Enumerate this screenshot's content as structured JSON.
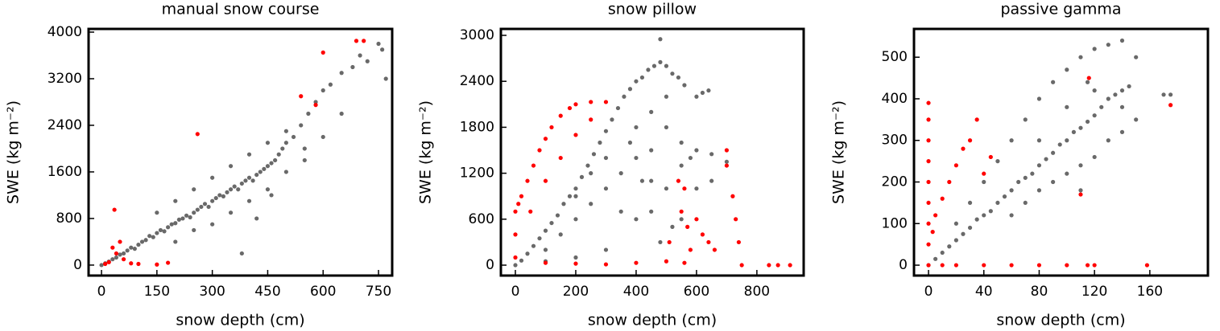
{
  "chart_data": [
    {
      "type": "scatter",
      "title": "manual snow course",
      "xlabel": "snow depth (cm)",
      "ylabel": "SWE (kg m⁻²)",
      "xlim": [
        -35,
        787
      ],
      "ylim": [
        -180,
        4055
      ],
      "xticks": [
        0,
        150,
        300,
        450,
        600,
        750
      ],
      "yticks": [
        0,
        800,
        1600,
        2400,
        3200,
        4000
      ],
      "series": [
        {
          "color": "#696969",
          "x": [
            0,
            10,
            20,
            30,
            40,
            50,
            60,
            70,
            80,
            90,
            100,
            110,
            120,
            130,
            140,
            150,
            160,
            170,
            180,
            190,
            200,
            210,
            220,
            230,
            240,
            250,
            260,
            270,
            280,
            290,
            300,
            310,
            320,
            330,
            340,
            350,
            360,
            370,
            380,
            390,
            400,
            410,
            420,
            430,
            440,
            450,
            460,
            470,
            480,
            490,
            500,
            520,
            540,
            560,
            580,
            600,
            620,
            650,
            680,
            700,
            720,
            750,
            770,
            760,
            200,
            250,
            300,
            350,
            400,
            450,
            150,
            200,
            250,
            300,
            350,
            400,
            450,
            500,
            550,
            500,
            380,
            420,
            460,
            550,
            600,
            650
          ],
          "values": [
            0,
            30,
            60,
            100,
            130,
            180,
            200,
            250,
            300,
            280,
            350,
            400,
            430,
            500,
            480,
            550,
            600,
            580,
            650,
            700,
            720,
            780,
            800,
            850,
            820,
            900,
            950,
            1000,
            1050,
            1000,
            1100,
            1150,
            1200,
            1180,
            1250,
            1300,
            1350,
            1300,
            1400,
            1450,
            1500,
            1450,
            1550,
            1600,
            1650,
            1700,
            1750,
            1800,
            1900,
            2000,
            2100,
            2200,
            2400,
            2600,
            2800,
            3000,
            3100,
            3300,
            3400,
            3600,
            3500,
            3800,
            3200,
            3700,
            400,
            600,
            700,
            900,
            1100,
            1300,
            900,
            1100,
            1300,
            1500,
            1700,
            1900,
            2100,
            2300,
            2000,
            1600,
            200,
            800,
            1200,
            1800,
            2200,
            2600
          ]
        },
        {
          "color": "#ff0000",
          "x": [
            10,
            20,
            30,
            35,
            40,
            50,
            60,
            80,
            100,
            150,
            180,
            260,
            540,
            600,
            690,
            710,
            580
          ],
          "values": [
            20,
            50,
            300,
            950,
            200,
            400,
            100,
            30,
            20,
            10,
            40,
            2250,
            2900,
            3650,
            3850,
            3850,
            2750
          ]
        }
      ]
    },
    {
      "type": "scatter",
      "title": "snow pillow",
      "xlabel": "snow depth (cm)",
      "ylabel": "SWE (kg m⁻²)",
      "xlim": [
        -48,
        955
      ],
      "ylim": [
        -136,
        3084
      ],
      "xticks": [
        0,
        200,
        400,
        600,
        800
      ],
      "yticks": [
        0,
        600,
        1200,
        1800,
        2400,
        3000
      ],
      "series": [
        {
          "color": "#696969",
          "x": [
            0,
            20,
            40,
            60,
            80,
            100,
            120,
            140,
            160,
            180,
            200,
            220,
            240,
            260,
            280,
            300,
            320,
            340,
            360,
            380,
            400,
            420,
            440,
            460,
            480,
            500,
            520,
            540,
            560,
            480,
            600,
            620,
            640,
            100,
            150,
            200,
            250,
            300,
            350,
            400,
            450,
            500,
            550,
            600,
            650,
            350,
            400,
            420,
            450,
            500,
            550,
            580,
            650,
            700,
            400,
            450,
            500,
            380,
            300,
            250,
            200,
            450,
            520,
            550,
            600,
            480,
            300,
            200,
            100
          ],
          "values": [
            0,
            60,
            150,
            250,
            350,
            450,
            550,
            650,
            800,
            900,
            1000,
            1150,
            1300,
            1450,
            1600,
            1750,
            1900,
            2050,
            2200,
            2300,
            2400,
            2450,
            2550,
            2600,
            2650,
            2600,
            2500,
            2450,
            2350,
            2950,
            2200,
            2250,
            2280,
            200,
            400,
            600,
            800,
            1000,
            1200,
            1400,
            1500,
            1800,
            1600,
            1500,
            1450,
            700,
            600,
            1100,
            1100,
            1000,
            1300,
            1400,
            1100,
            1350,
            1800,
            2000,
            2200,
            1600,
            1400,
            1200,
            900,
            700,
            500,
            600,
            1000,
            300,
            200,
            100,
            50
          ]
        },
        {
          "color": "#ff0000",
          "x": [
            0,
            0,
            0,
            10,
            20,
            40,
            60,
            80,
            100,
            120,
            150,
            180,
            200,
            250,
            300,
            50,
            100,
            150,
            200,
            250,
            100,
            200,
            300,
            400,
            500,
            540,
            550,
            560,
            570,
            580,
            600,
            620,
            640,
            660,
            560,
            700,
            720,
            730,
            740,
            750,
            840,
            870,
            910,
            700,
            510
          ],
          "values": [
            100,
            400,
            700,
            800,
            900,
            1100,
            1300,
            1500,
            1650,
            1800,
            1950,
            2050,
            2100,
            2130,
            2130,
            700,
            1100,
            1400,
            1700,
            1900,
            30,
            20,
            10,
            30,
            50,
            1100,
            700,
            1000,
            500,
            200,
            600,
            400,
            300,
            200,
            30,
            1300,
            900,
            600,
            300,
            0,
            0,
            0,
            0,
            1500,
            300
          ]
        }
      ]
    },
    {
      "type": "scatter",
      "title": "passive gamma",
      "xlabel": "snow depth (cm)",
      "ylabel": "SWE (kg m⁻²)",
      "xlim": [
        -10.5,
        202
      ],
      "ylim": [
        -25,
        568
      ],
      "xticks": [
        0,
        40,
        80,
        120,
        160
      ],
      "yticks": [
        0,
        100,
        200,
        300,
        400,
        500
      ],
      "series": [
        {
          "color": "#696969",
          "x": [
            0,
            5,
            10,
            15,
            20,
            25,
            30,
            35,
            40,
            45,
            50,
            55,
            60,
            65,
            70,
            75,
            80,
            85,
            90,
            95,
            100,
            105,
            110,
            115,
            120,
            125,
            130,
            135,
            140,
            145,
            170,
            175,
            60,
            70,
            80,
            90,
            100,
            110,
            120,
            130,
            140,
            150,
            40,
            50,
            60,
            70,
            80,
            90,
            100,
            110,
            120,
            130,
            140,
            80,
            100,
            120,
            140,
            150,
            30,
            20,
            110,
            115
          ],
          "values": [
            0,
            15,
            30,
            45,
            60,
            75,
            90,
            110,
            120,
            130,
            150,
            165,
            180,
            200,
            210,
            220,
            240,
            255,
            270,
            290,
            300,
            320,
            330,
            345,
            360,
            380,
            400,
            410,
            420,
            430,
            410,
            410,
            300,
            350,
            400,
            440,
            470,
            500,
            520,
            530,
            540,
            500,
            200,
            250,
            120,
            150,
            180,
            200,
            220,
            240,
            260,
            300,
            320,
            300,
            380,
            420,
            380,
            350,
            150,
            100,
            180,
            440
          ]
        },
        {
          "color": "#ff0000",
          "x": [
            0,
            0,
            0,
            0,
            0,
            0,
            0,
            0,
            0,
            5,
            10,
            15,
            20,
            25,
            30,
            35,
            40,
            45,
            10,
            20,
            40,
            60,
            80,
            100,
            115,
            120,
            158,
            110,
            116,
            175,
            3
          ],
          "values": [
            0,
            50,
            100,
            150,
            200,
            250,
            300,
            350,
            390,
            120,
            160,
            200,
            240,
            280,
            300,
            350,
            220,
            260,
            0,
            0,
            0,
            0,
            0,
            0,
            0,
            0,
            0,
            170,
            450,
            385,
            80
          ]
        }
      ]
    }
  ]
}
